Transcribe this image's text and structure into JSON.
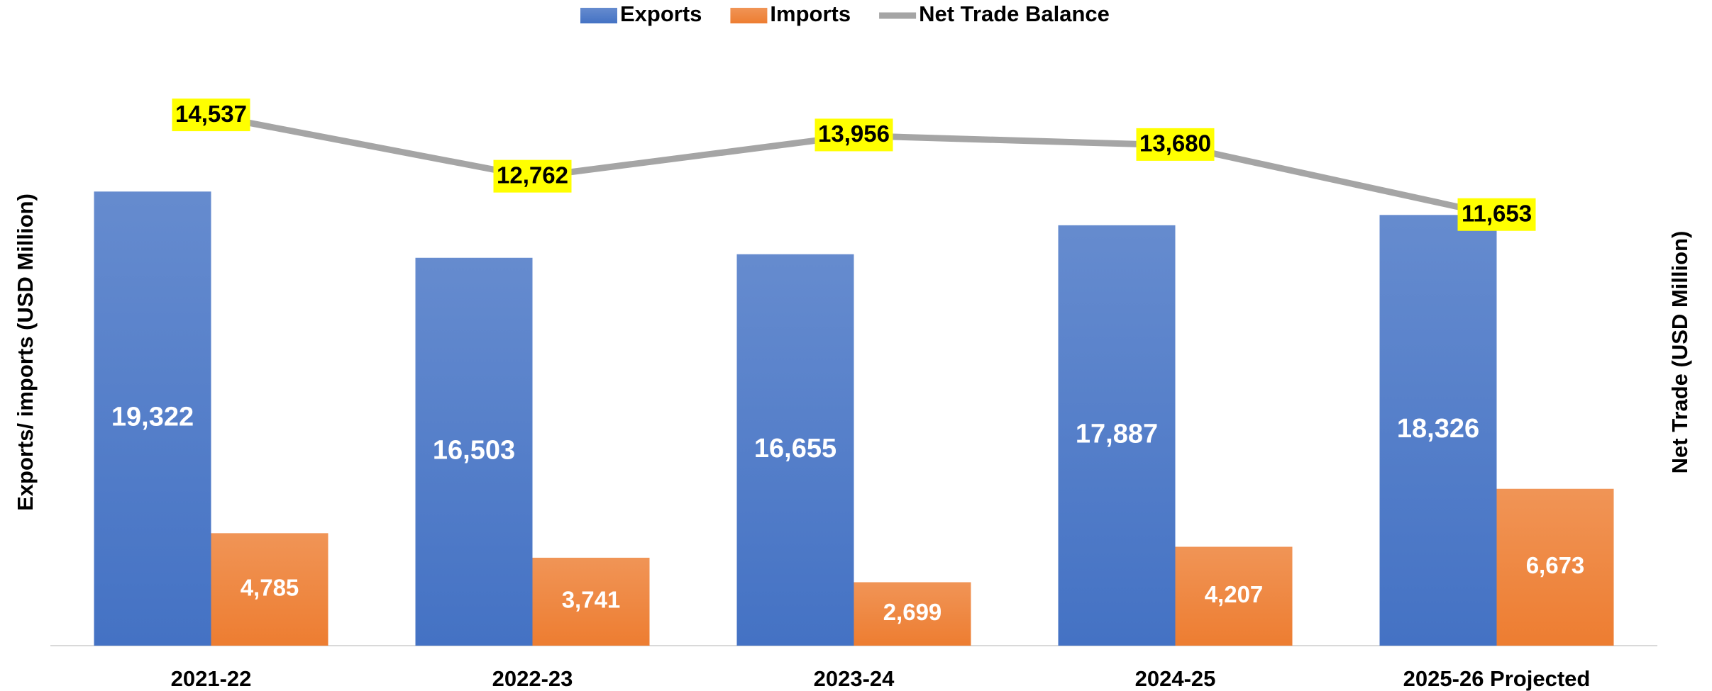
{
  "chart_data": {
    "type": "bar",
    "categories": [
      "2021-22",
      "2022-23",
      "2023-24",
      "2024-25",
      "2025-26 Projected"
    ],
    "ylabel": "Exports/ imports (USD Million)",
    "y2label": "Net Trade (USD Million)",
    "ylim": [
      0,
      25000
    ],
    "y2lim": [
      -800,
      16200
    ],
    "legend": "top",
    "series": [
      {
        "name": "Exports",
        "type": "bar",
        "color": "#4472c4",
        "values": [
          19322,
          16503,
          16655,
          17887,
          18326
        ],
        "value_labels": [
          "19,322",
          "16,503",
          "16,655",
          "17,887",
          "18,326"
        ]
      },
      {
        "name": "Imports",
        "type": "bar",
        "color": "#ed7d31",
        "values": [
          4785,
          3741,
          2699,
          4207,
          6673
        ],
        "value_labels": [
          "4,785",
          "3,741",
          "2,699",
          "4,207",
          "6,673"
        ]
      },
      {
        "name": "Net Trade Balance",
        "type": "line",
        "axis": "y2",
        "color": "#a5a5a5",
        "label_background": "#ffff00",
        "values": [
          14537,
          12762,
          13956,
          13680,
          11653
        ],
        "value_labels": [
          "14,537",
          "12,762",
          "13,956",
          "13,680",
          "11,653"
        ]
      }
    ]
  }
}
